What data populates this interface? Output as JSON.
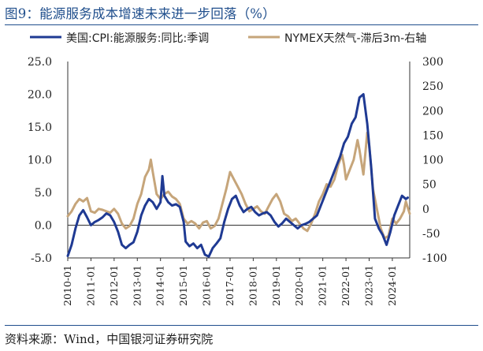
{
  "title": "图9：能源服务成本增速未来进一步回落（%）",
  "source": "资料来源：Wind，中国银河证券研究院",
  "colors": {
    "primary": "#1f3a93",
    "secondary": "#c6a57a",
    "frame": "#1f4e8c",
    "text": "#222222"
  },
  "chart_data": {
    "type": "line",
    "legend_position": "top",
    "grid": false,
    "xaxis": {
      "ticks": [
        "2010-01",
        "2011-01",
        "2012-01",
        "2013-01",
        "2014-01",
        "2015-01",
        "2016-01",
        "2017-01",
        "2018-01",
        "2019-01",
        "2020-01",
        "2021-01",
        "2022-01",
        "2023-01",
        "2024-01"
      ],
      "range": [
        "2010-01",
        "2024-10"
      ]
    },
    "yaxis_left": {
      "ticks": [
        "25.0",
        "20.0",
        "15.0",
        "10.0",
        "5.0",
        "0.0",
        "-5.0"
      ],
      "ylim": [
        -5,
        25
      ]
    },
    "yaxis_right": {
      "ticks": [
        "300",
        "250",
        "200",
        "150",
        "100",
        "50",
        "0",
        "-50",
        "-100"
      ],
      "ylim": [
        -100,
        300
      ]
    },
    "series": [
      {
        "name": "美国:CPI:能源服务:同比:季调",
        "axis": "left",
        "color": "#1f3a93",
        "points": [
          [
            "2010-01",
            -4.7
          ],
          [
            "2010-03",
            -3.0
          ],
          [
            "2010-05",
            -0.5
          ],
          [
            "2010-07",
            1.5
          ],
          [
            "2010-09",
            2.3
          ],
          [
            "2010-11",
            1.2
          ],
          [
            "2011-01",
            0.0
          ],
          [
            "2011-03",
            0.5
          ],
          [
            "2011-05",
            0.8
          ],
          [
            "2011-07",
            1.2
          ],
          [
            "2011-09",
            1.8
          ],
          [
            "2011-11",
            1.5
          ],
          [
            "2012-01",
            0.5
          ],
          [
            "2012-03",
            -1.0
          ],
          [
            "2012-05",
            -3.0
          ],
          [
            "2012-07",
            -3.5
          ],
          [
            "2012-09",
            -3.0
          ],
          [
            "2012-11",
            -2.6
          ],
          [
            "2013-01",
            -1.0
          ],
          [
            "2013-03",
            1.5
          ],
          [
            "2013-05",
            3.0
          ],
          [
            "2013-07",
            4.0
          ],
          [
            "2013-09",
            3.5
          ],
          [
            "2013-11",
            2.5
          ],
          [
            "2014-01",
            3.5
          ],
          [
            "2014-02",
            7.5
          ],
          [
            "2014-03",
            4.5
          ],
          [
            "2014-05",
            3.5
          ],
          [
            "2014-07",
            3.0
          ],
          [
            "2014-09",
            3.2
          ],
          [
            "2014-11",
            2.8
          ],
          [
            "2015-01",
            0.5
          ],
          [
            "2015-02",
            -2.5
          ],
          [
            "2015-04",
            -3.2
          ],
          [
            "2015-06",
            -2.8
          ],
          [
            "2015-08",
            -3.5
          ],
          [
            "2015-10",
            -3.0
          ],
          [
            "2015-12",
            -4.5
          ],
          [
            "2016-02",
            -4.8
          ],
          [
            "2016-04",
            -3.5
          ],
          [
            "2016-06",
            -2.8
          ],
          [
            "2016-08",
            -2.0
          ],
          [
            "2016-10",
            0.5
          ],
          [
            "2016-12",
            2.5
          ],
          [
            "2017-02",
            4.0
          ],
          [
            "2017-04",
            4.5
          ],
          [
            "2017-06",
            3.0
          ],
          [
            "2017-08",
            2.0
          ],
          [
            "2017-10",
            2.5
          ],
          [
            "2017-12",
            2.8
          ],
          [
            "2018-02",
            2.0
          ],
          [
            "2018-04",
            1.5
          ],
          [
            "2018-06",
            1.8
          ],
          [
            "2018-08",
            2.0
          ],
          [
            "2018-10",
            1.5
          ],
          [
            "2018-12",
            0.5
          ],
          [
            "2019-02",
            -0.2
          ],
          [
            "2019-04",
            0.3
          ],
          [
            "2019-06",
            1.0
          ],
          [
            "2019-08",
            0.5
          ],
          [
            "2019-10",
            0.0
          ],
          [
            "2019-12",
            -0.5
          ],
          [
            "2020-02",
            0.0
          ],
          [
            "2020-04",
            0.2
          ],
          [
            "2020-06",
            0.5
          ],
          [
            "2020-08",
            1.0
          ],
          [
            "2020-10",
            1.5
          ],
          [
            "2020-12",
            3.0
          ],
          [
            "2021-02",
            4.5
          ],
          [
            "2021-04",
            6.0
          ],
          [
            "2021-06",
            7.5
          ],
          [
            "2021-08",
            9.0
          ],
          [
            "2021-10",
            10.5
          ],
          [
            "2021-12",
            12.5
          ],
          [
            "2022-02",
            13.5
          ],
          [
            "2022-04",
            15.5
          ],
          [
            "2022-06",
            16.5
          ],
          [
            "2022-08",
            19.5
          ],
          [
            "2022-10",
            20.0
          ],
          [
            "2022-12",
            15.5
          ],
          [
            "2023-02",
            9.0
          ],
          [
            "2023-04",
            1.0
          ],
          [
            "2023-06",
            -0.5
          ],
          [
            "2023-08",
            -1.5
          ],
          [
            "2023-10",
            -3.0
          ],
          [
            "2023-12",
            -1.0
          ],
          [
            "2024-02",
            1.5
          ],
          [
            "2024-04",
            3.0
          ],
          [
            "2024-06",
            4.5
          ],
          [
            "2024-08",
            4.0
          ],
          [
            "2024-09",
            4.2
          ]
        ]
      },
      {
        "name": "NYMEX天然气-滞后3m-右轴",
        "axis": "right",
        "color": "#c6a57a",
        "points": [
          [
            "2010-01",
            -15
          ],
          [
            "2010-03",
            -5
          ],
          [
            "2010-05",
            10
          ],
          [
            "2010-07",
            20
          ],
          [
            "2010-09",
            15
          ],
          [
            "2010-11",
            22
          ],
          [
            "2011-01",
            -5
          ],
          [
            "2011-03",
            -8
          ],
          [
            "2011-05",
            0
          ],
          [
            "2011-07",
            -2
          ],
          [
            "2011-09",
            -5
          ],
          [
            "2011-11",
            -8
          ],
          [
            "2012-01",
            0
          ],
          [
            "2012-03",
            -10
          ],
          [
            "2012-05",
            -30
          ],
          [
            "2012-07",
            -40
          ],
          [
            "2012-09",
            -35
          ],
          [
            "2012-11",
            -20
          ],
          [
            "2013-01",
            10
          ],
          [
            "2013-03",
            30
          ],
          [
            "2013-05",
            65
          ],
          [
            "2013-07",
            80
          ],
          [
            "2013-08",
            100
          ],
          [
            "2013-09",
            75
          ],
          [
            "2013-11",
            30
          ],
          [
            "2014-01",
            20
          ],
          [
            "2014-03",
            30
          ],
          [
            "2014-05",
            35
          ],
          [
            "2014-07",
            25
          ],
          [
            "2014-09",
            20
          ],
          [
            "2014-11",
            10
          ],
          [
            "2015-01",
            -20
          ],
          [
            "2015-03",
            -30
          ],
          [
            "2015-05",
            -25
          ],
          [
            "2015-07",
            -30
          ],
          [
            "2015-09",
            -40
          ],
          [
            "2015-11",
            -28
          ],
          [
            "2016-01",
            -25
          ],
          [
            "2016-03",
            -40
          ],
          [
            "2016-05",
            -35
          ],
          [
            "2016-07",
            -20
          ],
          [
            "2016-09",
            10
          ],
          [
            "2016-11",
            40
          ],
          [
            "2017-01",
            75
          ],
          [
            "2017-03",
            60
          ],
          [
            "2017-05",
            45
          ],
          [
            "2017-07",
            30
          ],
          [
            "2017-09",
            10
          ],
          [
            "2017-11",
            -5
          ],
          [
            "2018-01",
            0
          ],
          [
            "2018-03",
            5
          ],
          [
            "2018-05",
            -5
          ],
          [
            "2018-07",
            -10
          ],
          [
            "2018-09",
            5
          ],
          [
            "2018-11",
            20
          ],
          [
            "2019-01",
            30
          ],
          [
            "2019-03",
            15
          ],
          [
            "2019-05",
            -10
          ],
          [
            "2019-07",
            -15
          ],
          [
            "2019-09",
            -25
          ],
          [
            "2019-11",
            -20
          ],
          [
            "2020-01",
            -30
          ],
          [
            "2020-03",
            -40
          ],
          [
            "2020-05",
            -45
          ],
          [
            "2020-07",
            -30
          ],
          [
            "2020-09",
            -10
          ],
          [
            "2020-11",
            15
          ],
          [
            "2021-01",
            30
          ],
          [
            "2021-03",
            50
          ],
          [
            "2021-05",
            45
          ],
          [
            "2021-07",
            60
          ],
          [
            "2021-09",
            90
          ],
          [
            "2021-11",
            110
          ],
          [
            "2021-12",
            90
          ],
          [
            "2022-01",
            60
          ],
          [
            "2022-03",
            80
          ],
          [
            "2022-05",
            100
          ],
          [
            "2022-07",
            140
          ],
          [
            "2022-08",
            120
          ],
          [
            "2022-10",
            70
          ],
          [
            "2022-12",
            155
          ],
          [
            "2023-01",
            130
          ],
          [
            "2023-03",
            40
          ],
          [
            "2023-05",
            0
          ],
          [
            "2023-07",
            -40
          ],
          [
            "2023-09",
            -60
          ],
          [
            "2023-11",
            -55
          ],
          [
            "2024-01",
            -20
          ],
          [
            "2024-03",
            -30
          ],
          [
            "2024-05",
            -20
          ],
          [
            "2024-07",
            -5
          ],
          [
            "2024-08",
            15
          ],
          [
            "2024-10",
            -10
          ]
        ]
      }
    ]
  }
}
